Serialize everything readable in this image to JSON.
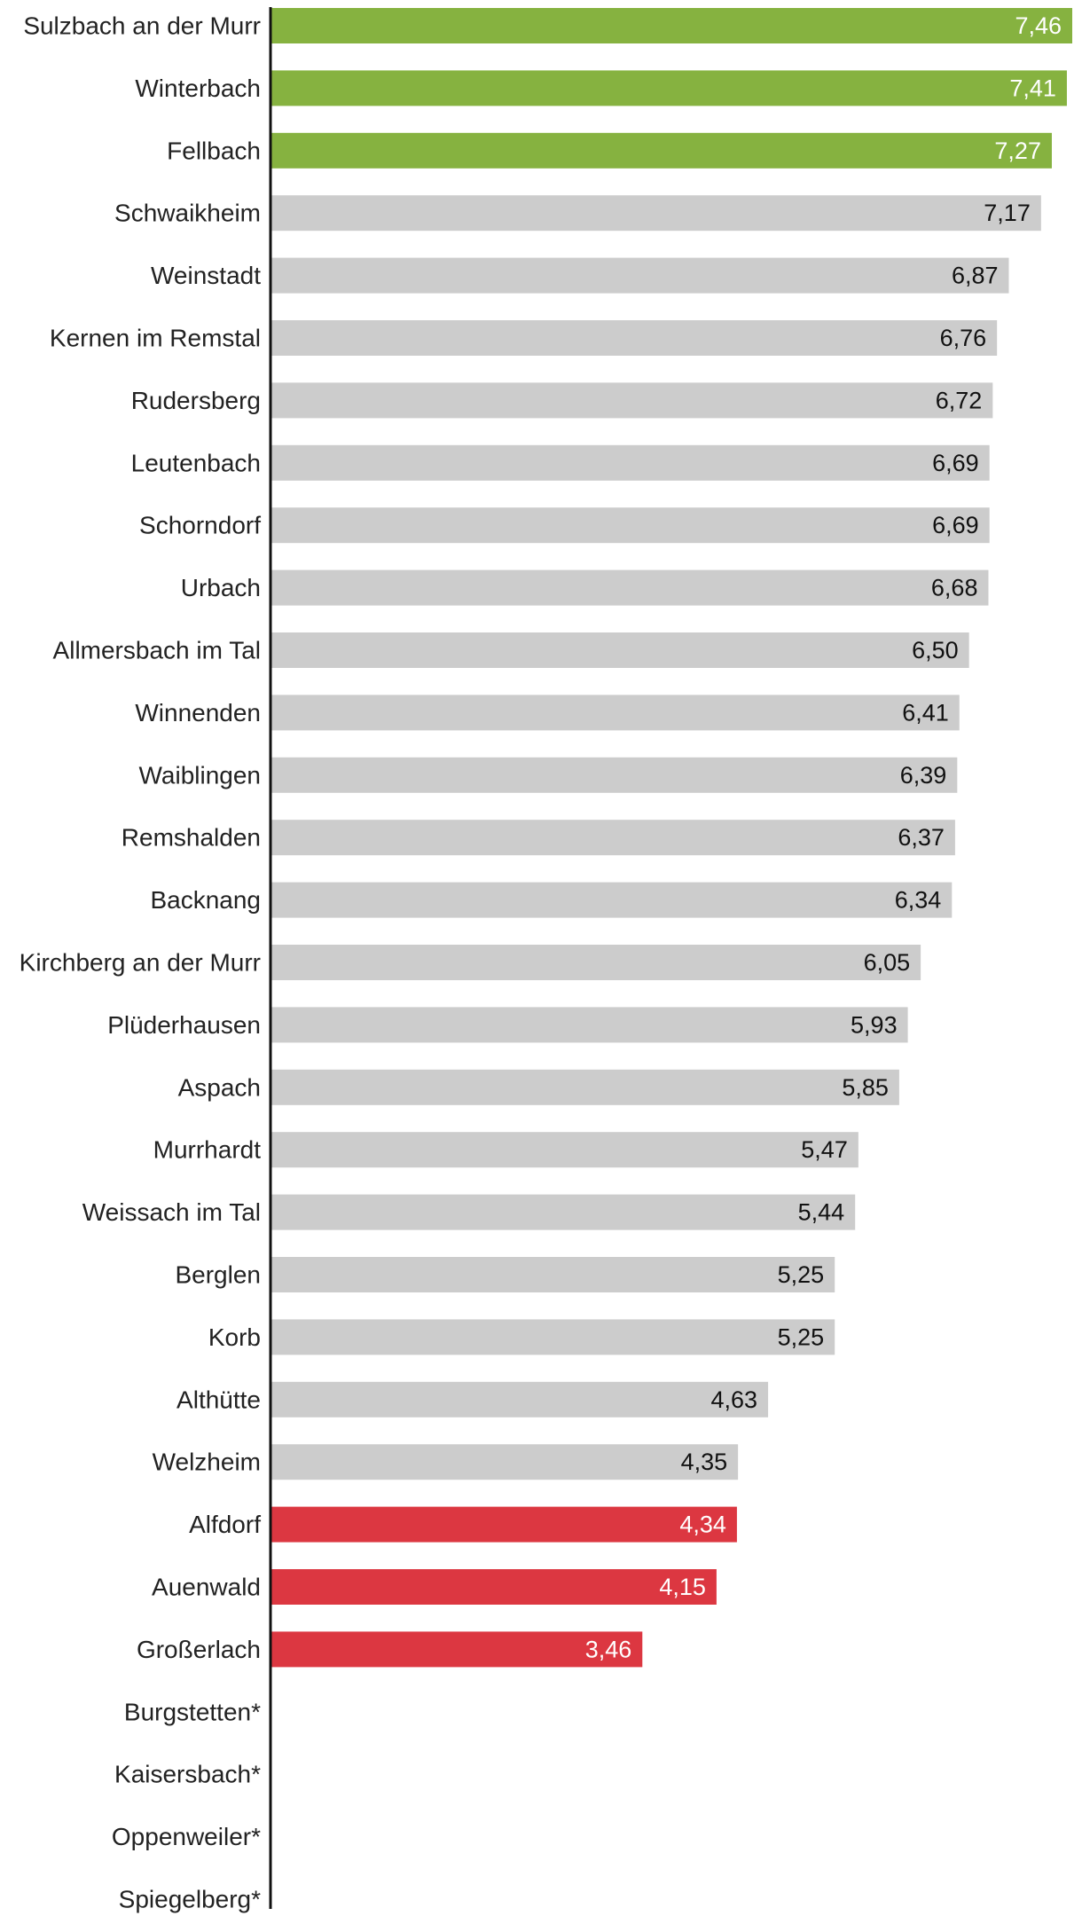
{
  "chart_data": {
    "type": "bar",
    "orientation": "horizontal",
    "title": "",
    "xlabel": "",
    "ylabel": "",
    "xlim": [
      0,
      7.5
    ],
    "grid": false,
    "decimal_separator": ",",
    "categories": [
      "Sulzbach an der Murr",
      "Winterbach",
      "Fellbach",
      "Schwaikheim",
      "Weinstadt",
      "Kernen im Remstal",
      "Rudersberg",
      "Leutenbach",
      "Schorndorf",
      "Urbach",
      "Allmersbach im Tal",
      "Winnenden",
      "Waiblingen",
      "Remshalden",
      "Backnang",
      "Kirchberg an der Murr",
      "Plüderhausen",
      "Aspach",
      "Murrhardt",
      "Weissach im Tal",
      "Berglen",
      "Korb",
      "Althütte",
      "Welzheim",
      "Alfdorf",
      "Auenwald",
      "Großerlach",
      "Burgstetten*",
      "Kaisersbach*",
      "Oppenweiler*",
      "Spiegelberg*"
    ],
    "values": [
      7.46,
      7.41,
      7.27,
      7.17,
      6.87,
      6.76,
      6.72,
      6.69,
      6.69,
      6.68,
      6.5,
      6.41,
      6.39,
      6.37,
      6.34,
      6.05,
      5.93,
      5.85,
      5.47,
      5.44,
      5.25,
      5.25,
      4.63,
      4.35,
      4.34,
      4.15,
      3.46,
      null,
      null,
      null,
      null
    ],
    "value_labels": [
      "7,46",
      "7,41",
      "7,27",
      "7,17",
      "6,87",
      "6,76",
      "6,72",
      "6,69",
      "6,69",
      "6,68",
      "6,50",
      "6,41",
      "6,39",
      "6,37",
      "6,34",
      "6,05",
      "5,93",
      "5,85",
      "5,47",
      "5,44",
      "5,25",
      "5,25",
      "4,63",
      "4,35",
      "4,34",
      "4,15",
      "3,46",
      "",
      "",
      "",
      ""
    ],
    "groups": [
      "top",
      "top",
      "top",
      "middle",
      "middle",
      "middle",
      "middle",
      "middle",
      "middle",
      "middle",
      "middle",
      "middle",
      "middle",
      "middle",
      "middle",
      "middle",
      "middle",
      "middle",
      "middle",
      "middle",
      "middle",
      "middle",
      "middle",
      "middle",
      "bottom",
      "bottom",
      "bottom",
      "none",
      "none",
      "none",
      "none"
    ],
    "colors": {
      "top": "#86b240",
      "middle": "#cccccc",
      "bottom": "#dc3741",
      "axis": "#111111",
      "label_on_colored": "#ffffff",
      "label_on_grey": "#111111"
    }
  }
}
